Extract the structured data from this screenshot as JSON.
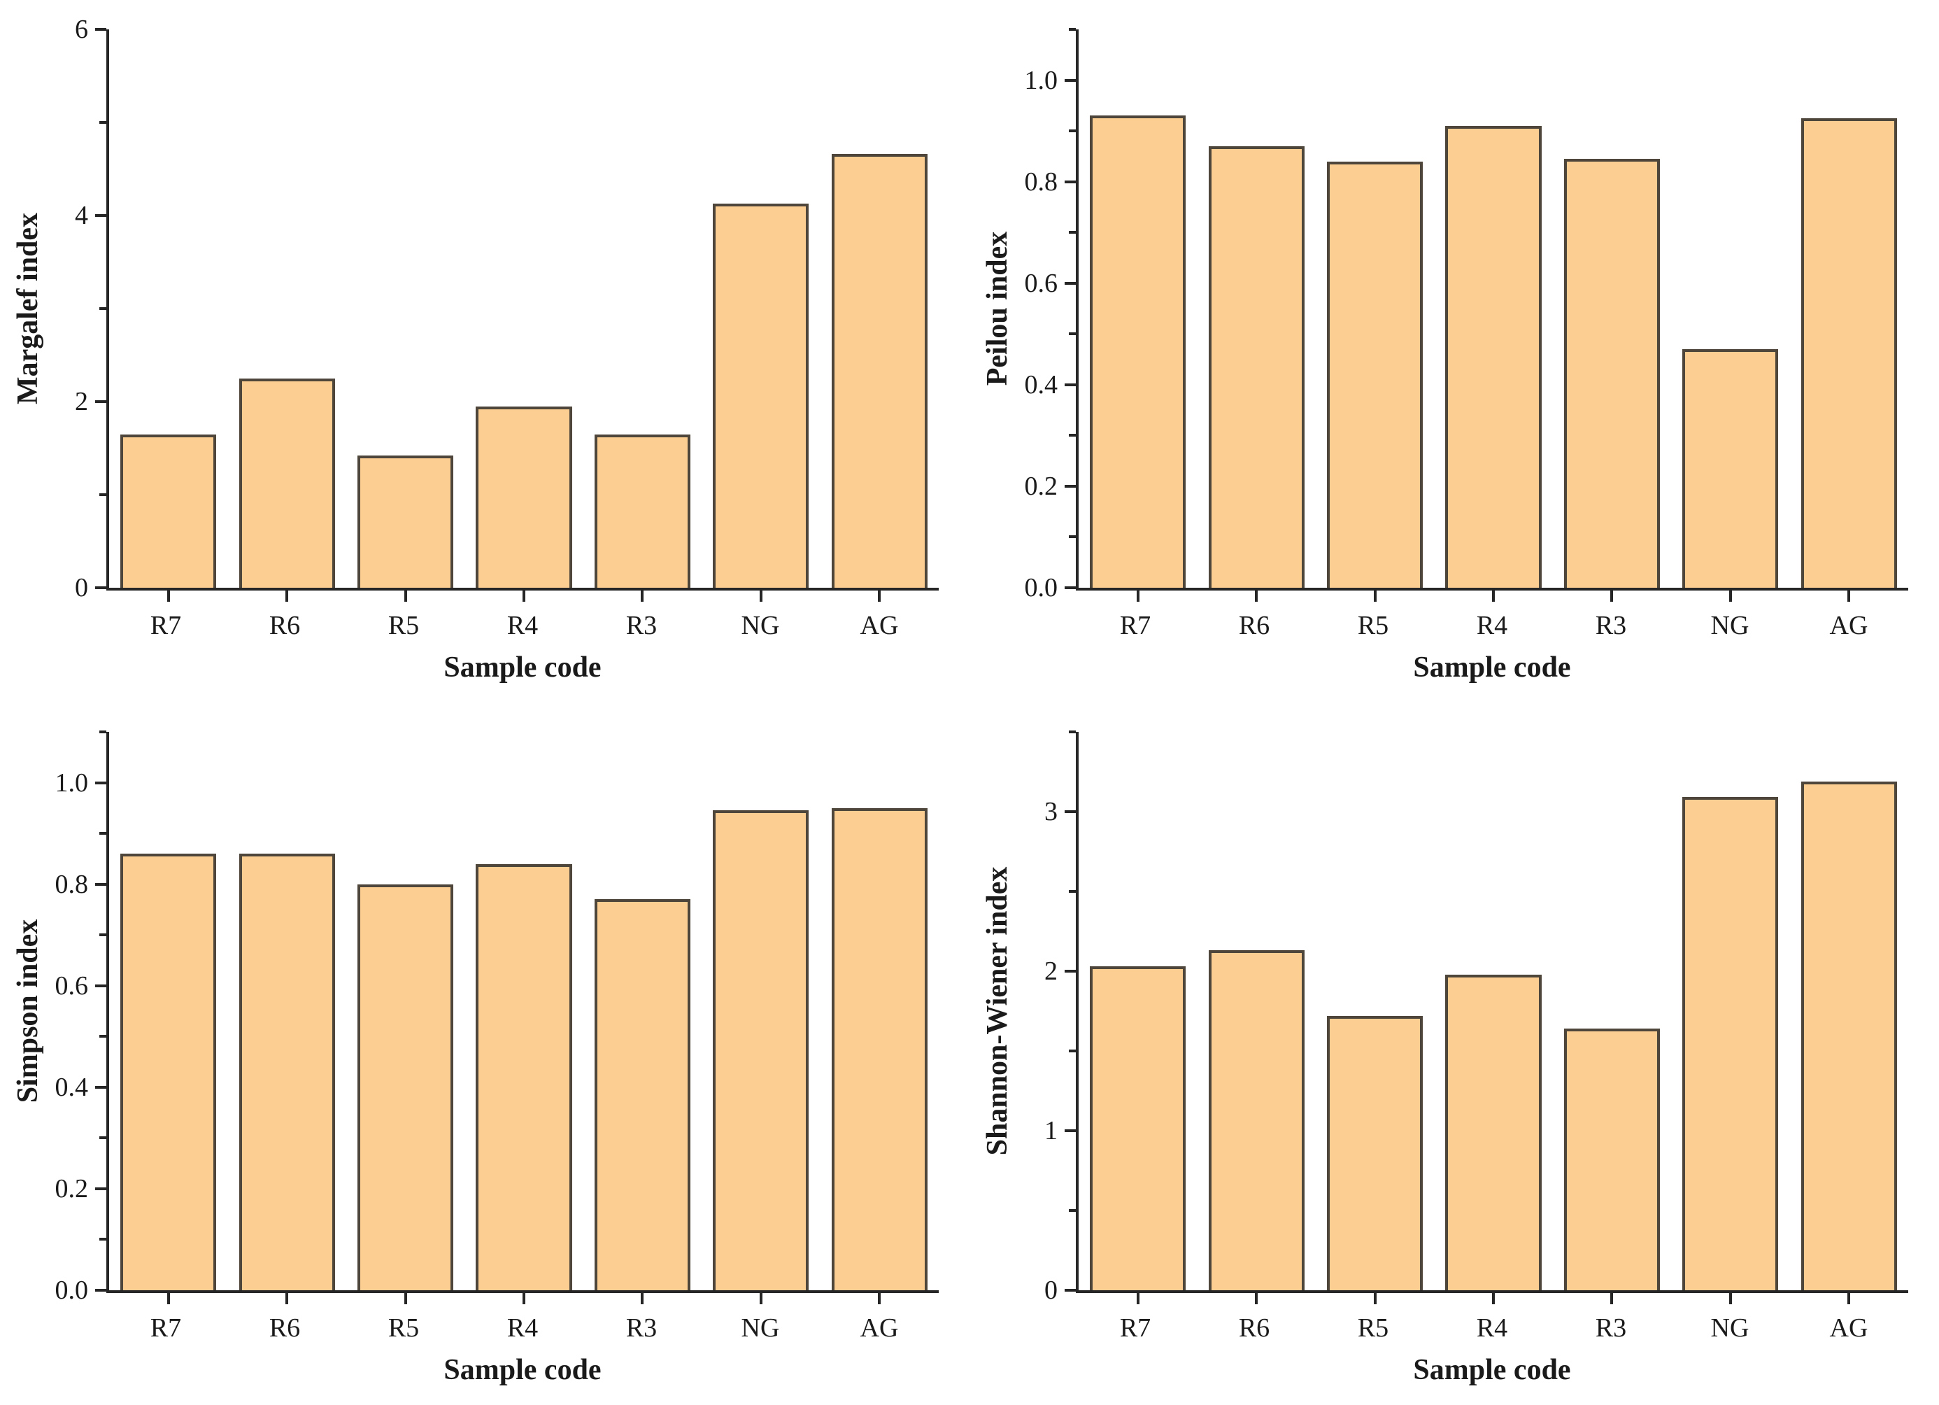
{
  "colors": {
    "bar_fill": "#FCCE92",
    "bar_edge": "#4E463B",
    "axis": "#262626",
    "text": "#1A1A1A",
    "background": "#FFFFFF"
  },
  "chart_data": [
    {
      "id": "margalef",
      "type": "bar",
      "title": "",
      "xlabel": "Sample code",
      "ylabel": "Margalef index",
      "categories": [
        "R7",
        "R6",
        "R5",
        "R4",
        "R3",
        "NG",
        "AG"
      ],
      "values": [
        1.65,
        2.25,
        1.42,
        1.95,
        1.65,
        4.13,
        4.66
      ],
      "ylim": [
        0,
        6
      ],
      "grid": false,
      "legend": "none",
      "yticks": [
        {
          "v": 0,
          "label": "0"
        },
        {
          "v": 2,
          "label": "2"
        },
        {
          "v": 4,
          "label": "4"
        },
        {
          "v": 6,
          "label": "6"
        }
      ],
      "yminor": [
        1,
        3,
        5
      ]
    },
    {
      "id": "peilou",
      "type": "bar",
      "title": "",
      "xlabel": "Sample code",
      "ylabel": "Peilou index",
      "categories": [
        "R7",
        "R6",
        "R5",
        "R4",
        "R3",
        "NG",
        "AG"
      ],
      "values": [
        0.93,
        0.87,
        0.84,
        0.91,
        0.845,
        0.47,
        0.925
      ],
      "ylim": [
        0,
        1.1
      ],
      "grid": false,
      "legend": "none",
      "yticks": [
        {
          "v": 0,
          "label": "0.0"
        },
        {
          "v": 0.2,
          "label": "0.2"
        },
        {
          "v": 0.4,
          "label": "0.4"
        },
        {
          "v": 0.6,
          "label": "0.6"
        },
        {
          "v": 0.8,
          "label": "0.8"
        },
        {
          "v": 1.0,
          "label": "1.0"
        }
      ],
      "yminor": [
        0.1,
        0.3,
        0.5,
        0.7,
        0.9,
        1.1
      ]
    },
    {
      "id": "simpson",
      "type": "bar",
      "title": "",
      "xlabel": "Sample code",
      "ylabel": "Simpson index",
      "categories": [
        "R7",
        "R6",
        "R5",
        "R4",
        "R3",
        "NG",
        "AG"
      ],
      "values": [
        0.86,
        0.86,
        0.8,
        0.84,
        0.77,
        0.945,
        0.95
      ],
      "ylim": [
        0,
        1.1
      ],
      "grid": false,
      "legend": "none",
      "yticks": [
        {
          "v": 0,
          "label": "0.0"
        },
        {
          "v": 0.2,
          "label": "0.2"
        },
        {
          "v": 0.4,
          "label": "0.4"
        },
        {
          "v": 0.6,
          "label": "0.6"
        },
        {
          "v": 0.8,
          "label": "0.8"
        },
        {
          "v": 1.0,
          "label": "1.0"
        }
      ],
      "yminor": [
        0.1,
        0.3,
        0.5,
        0.7,
        0.9,
        1.1
      ]
    },
    {
      "id": "shannon",
      "type": "bar",
      "title": "",
      "xlabel": "Sample code",
      "ylabel": "Shannon-Wiener index",
      "categories": [
        "R7",
        "R6",
        "R5",
        "R4",
        "R3",
        "NG",
        "AG"
      ],
      "values": [
        2.03,
        2.13,
        1.72,
        1.98,
        1.64,
        3.09,
        3.19
      ],
      "ylim": [
        0,
        3.5
      ],
      "grid": false,
      "legend": "none",
      "yticks": [
        {
          "v": 0,
          "label": "0"
        },
        {
          "v": 1,
          "label": "1"
        },
        {
          "v": 2,
          "label": "2"
        },
        {
          "v": 3,
          "label": "3"
        }
      ],
      "yminor": [
        0.5,
        1.5,
        2.5,
        3.5
      ]
    }
  ]
}
